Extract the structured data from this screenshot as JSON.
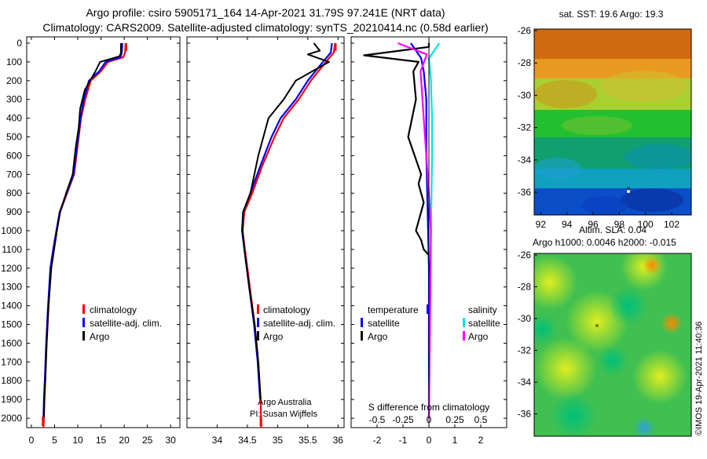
{
  "header": {
    "title_line1": "Argo profile: csiro 5905171_164 14-Apr-2021 31.79S 97.241E (NRT data)",
    "title_line2": "Climatology: CARS2009. Satellite-adjusted climatology: synTS_20210414.nc (0.58d earlier)"
  },
  "colors": {
    "climatology": "#ff0000",
    "satellite": "#0000ff",
    "argo": "#000000",
    "sal_satellite": "#00e5e5",
    "sal_argo": "#ff00ff"
  },
  "depth_axis": {
    "range": [
      0,
      2050
    ],
    "ticks": [
      "0",
      "100",
      "200",
      "300",
      "400",
      "500",
      "600",
      "700",
      "800",
      "900",
      "1000",
      "1100",
      "1200",
      "1300",
      "1400",
      "1500",
      "1600",
      "1700",
      "1800",
      "1900",
      "2000"
    ]
  },
  "chart_data": [
    {
      "type": "line",
      "name": "temperature-profile",
      "xlabel": "",
      "ylabel": "",
      "xlim": [
        -1,
        32
      ],
      "ylim": [
        2050,
        0
      ],
      "xticks": [
        "0",
        "5",
        "10",
        "15",
        "20",
        "25",
        "30"
      ],
      "legend": [
        "climatology",
        "satellite-adj. clim.",
        "Argo"
      ],
      "series": [
        {
          "name": "climatology",
          "color": "#ff0000",
          "x": [
            20.3,
            20.2,
            19.8,
            16.5,
            15.0,
            12.8,
            11.6,
            10.7,
            10.2,
            9.2,
            7.7,
            6.2,
            5.5,
            4.8,
            4.2,
            3.7,
            3.3,
            3.0,
            2.8,
            2.7,
            2.6
          ],
          "depth": [
            0,
            50,
            75,
            100,
            150,
            200,
            300,
            400,
            500,
            700,
            800,
            900,
            1000,
            1100,
            1200,
            1400,
            1600,
            1800,
            1900,
            2000,
            2050
          ]
        },
        {
          "name": "satellite-adj. clim.",
          "color": "#0000ff",
          "x": [
            19.6,
            19.5,
            19.2,
            16.0,
            14.6,
            12.4,
            11.3,
            10.6,
            10.1,
            9.1,
            7.6,
            6.1,
            5.4,
            4.7,
            4.1,
            3.6,
            3.2,
            2.9,
            2.7,
            2.6
          ],
          "depth": [
            0,
            50,
            75,
            100,
            150,
            200,
            300,
            400,
            500,
            700,
            800,
            900,
            1000,
            1100,
            1200,
            1400,
            1600,
            1800,
            1900,
            2000
          ]
        },
        {
          "name": "Argo",
          "color": "#000000",
          "x": [
            19.3,
            19.3,
            19.0,
            14.8,
            13.8,
            11.5,
            10.5,
            10.2,
            9.6,
            8.9,
            7.5,
            6.2,
            5.5,
            4.9,
            4.3,
            3.7,
            3.3,
            3.0,
            2.8,
            2.7
          ],
          "depth": [
            0,
            50,
            70,
            100,
            150,
            250,
            350,
            450,
            550,
            700,
            800,
            900,
            1000,
            1100,
            1200,
            1400,
            1600,
            1800,
            1900,
            2000
          ]
        }
      ]
    },
    {
      "type": "line",
      "name": "salinity-profile",
      "xlabel": "",
      "ylabel": "",
      "xlim": [
        33.5,
        36.1
      ],
      "ylim": [
        2050,
        0
      ],
      "xticks": [
        "34",
        "34.5",
        "35",
        "35.5",
        "36"
      ],
      "legend": [
        "climatology",
        "satellite-adj. clim.",
        "Argo"
      ],
      "series": [
        {
          "name": "climatology",
          "color": "#ff0000",
          "x": [
            35.95,
            35.93,
            35.8,
            35.55,
            35.35,
            35.1,
            34.95,
            34.75,
            34.58,
            34.45,
            34.42,
            34.46,
            34.54,
            34.62,
            34.68,
            34.72,
            34.73
          ],
          "depth": [
            0,
            50,
            100,
            200,
            300,
            400,
            500,
            650,
            800,
            900,
            1000,
            1100,
            1300,
            1500,
            1700,
            1900,
            2050
          ]
        },
        {
          "name": "satellite-adj. clim.",
          "color": "#0000ff",
          "x": [
            35.9,
            35.88,
            35.75,
            35.5,
            35.3,
            35.05,
            34.9,
            34.72,
            34.55,
            34.43,
            34.41,
            34.45,
            34.53,
            34.61,
            34.67,
            34.71
          ],
          "depth": [
            0,
            50,
            100,
            200,
            300,
            400,
            500,
            650,
            800,
            900,
            1000,
            1100,
            1300,
            1500,
            1700,
            1900
          ]
        },
        {
          "name": "Argo",
          "color": "#000000",
          "x": [
            35.6,
            35.7,
            35.5,
            35.85,
            35.3,
            35.1,
            34.85,
            34.68,
            34.55,
            34.43,
            34.42,
            34.45,
            34.53,
            34.62,
            34.68,
            34.72
          ],
          "depth": [
            0,
            40,
            60,
            100,
            200,
            300,
            400,
            600,
            800,
            900,
            1000,
            1100,
            1300,
            1500,
            1700,
            1900
          ]
        }
      ]
    },
    {
      "type": "line",
      "name": "difference-from-climatology",
      "xlabel": "S difference from climatology",
      "xlim": [
        -3,
        3
      ],
      "ylim": [
        2050,
        0
      ],
      "xticks_T": [
        "-2",
        "-1",
        "0",
        "1",
        "2"
      ],
      "xticks_S": [
        "-0.5",
        "-0.25",
        "0",
        "0.25",
        "0.5"
      ],
      "legend": [
        "temperature",
        "salinity",
        "satellite",
        "Argo",
        "satellite",
        "Argo"
      ],
      "series": [
        {
          "name": "T satellite",
          "color": "#0000ff",
          "x": [
            -0.7,
            -0.3,
            -0.2,
            -0.1,
            -0.1,
            -0.05,
            0.0,
            0.0,
            0.0
          ],
          "depth": [
            0,
            80,
            150,
            300,
            600,
            900,
            1200,
            1600,
            2000
          ]
        },
        {
          "name": "T Argo",
          "color": "#000000",
          "x": [
            0.0,
            0.0,
            -2.5,
            -0.4,
            -0.6,
            -0.5,
            -0.8,
            -0.3,
            -0.4,
            -0.2,
            -0.5,
            -0.3,
            -0.2,
            0.0
          ],
          "depth": [
            0,
            20,
            65,
            100,
            150,
            300,
            500,
            700,
            750,
            850,
            1000,
            1050,
            1100,
            1130
          ]
        },
        {
          "name": "S satellite",
          "color": "#00e5e5",
          "x": [
            0.1,
            0.0,
            0.02,
            0.03,
            0.03,
            0.02,
            0.0
          ],
          "depth": [
            0,
            80,
            200,
            400,
            600,
            1000,
            2000
          ]
        },
        {
          "name": "S Argo",
          "color": "#ff00ff",
          "x": [
            -0.3,
            -0.02,
            -0.08,
            -0.05,
            0.0,
            0.02,
            0.0
          ],
          "depth": [
            0,
            60,
            150,
            400,
            800,
            1000,
            2000
          ]
        }
      ]
    }
  ],
  "notes": {
    "pi_line1": "Argo Australia",
    "pi_line2": "PI: Susan Wijffels"
  },
  "maps": {
    "sst_title": "sat. SST: 19.6 Argo: 19.3",
    "sla_title1": "Altim. SLA: 0.04",
    "sla_title2": "Argo h1000: 0.0046 h2000: -0.015",
    "lat_ticks": [
      "-26",
      "-28",
      "-30",
      "-32",
      "-34",
      "-36"
    ],
    "lon_ticks": [
      "92",
      "94",
      "96",
      "98",
      "100",
      "102"
    ],
    "credit": "©IMOS 19-Apr-2021 11:40:36"
  }
}
